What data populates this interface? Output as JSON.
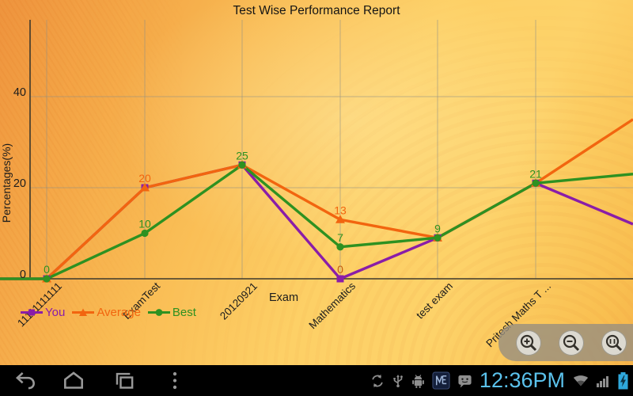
{
  "app": {
    "title": "Test Wise Performance Report"
  },
  "chart_data": {
    "type": "line",
    "title": "Test Wise Performance Report",
    "xlabel": "Exam",
    "ylabel": "Percentages(%)",
    "categories": [
      "11111111111",
      "ExamTest",
      "20120921",
      "Mathematics",
      "test exam",
      "Pritesh Maths T ..."
    ],
    "y_ticks": [
      0,
      20,
      40
    ],
    "ylim": [
      -3,
      57
    ],
    "grid": true,
    "legend_position": "bottom-left",
    "series": [
      {
        "name": "You",
        "color": "#8a1da8",
        "marker": "square",
        "values": [
          0,
          20,
          25,
          0,
          9,
          21
        ],
        "left_edge_value": 0,
        "right_edge_value_estimate": 12
      },
      {
        "name": "Average",
        "color": "#f2650f",
        "marker": "triangle",
        "values": [
          0,
          20,
          25,
          13,
          9,
          21
        ],
        "left_edge_value": 0,
        "right_edge_value_estimate": 35
      },
      {
        "name": "Best",
        "color": "#2e9121",
        "marker": "circle",
        "values": [
          0,
          10,
          25,
          7,
          9,
          21
        ],
        "left_edge_value": 0,
        "right_edge_value_estimate": 23
      }
    ],
    "point_labels": [
      {
        "cat": 0,
        "value": 0,
        "text": "0",
        "color": "#2e9121"
      },
      {
        "cat": 1,
        "value": 20,
        "text": "20",
        "color": "#f2650f"
      },
      {
        "cat": 1,
        "value": 10,
        "text": "10",
        "color": "#2e9121"
      },
      {
        "cat": 2,
        "value": 25,
        "text": "25",
        "color": "#2e9121"
      },
      {
        "cat": 3,
        "value": 13,
        "text": "13",
        "color": "#f2650f"
      },
      {
        "cat": 3,
        "value": 7,
        "text": "7",
        "color": "#2e9121"
      },
      {
        "cat": 3,
        "value": 0,
        "text": "0",
        "color": "#c25a10"
      },
      {
        "cat": 4,
        "value": 9,
        "text": "9",
        "color": "#2e9121"
      },
      {
        "cat": 5,
        "value": 21,
        "text": "21",
        "color": "#2e9121"
      }
    ],
    "colors": {
      "axis": "#3c382c",
      "gridline": "#8f8f85",
      "label_text": "#1c1c1c"
    }
  },
  "legend": {
    "items": [
      {
        "label": "You"
      },
      {
        "label": "Average"
      },
      {
        "label": "Best"
      }
    ]
  },
  "zoom_controls": {
    "icons": [
      "zoom-in-magnifier-icon",
      "zoom-out-magnifier-icon",
      "zoom-fit-magnifier-icon"
    ]
  },
  "system_bar": {
    "clock": "12:36PM",
    "nav_icons": [
      "back-icon",
      "home-icon",
      "recents-icon",
      "menu-overflow-icon"
    ],
    "status_icons": [
      "sync-icon",
      "usb-icon",
      "android-debug-icon",
      "app-notification-icon",
      "sms-chat-icon",
      "wifi-icon",
      "signal-bars-icon",
      "battery-charging-icon"
    ],
    "accent_color": "#5bc2ec"
  }
}
